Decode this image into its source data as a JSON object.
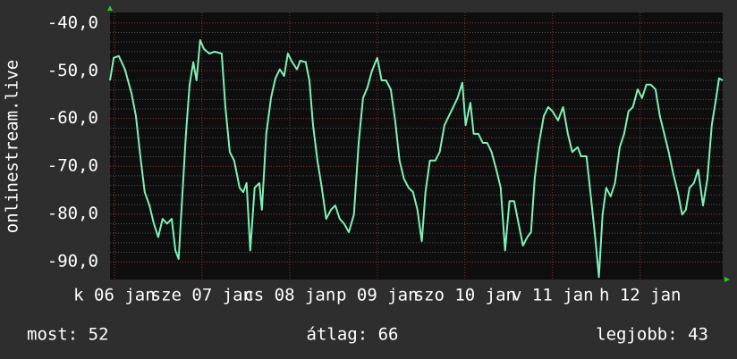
{
  "chart_data": {
    "type": "line",
    "y_label": "onlinestream.live",
    "ylim": [
      -93.7,
      -37.8
    ],
    "yticks": [
      {
        "value": -40,
        "label": "-40,0"
      },
      {
        "value": -50,
        "label": "-50,0"
      },
      {
        "value": -60,
        "label": "-60,0"
      },
      {
        "value": -70,
        "label": "-70,0"
      },
      {
        "value": -80,
        "label": "-80,0"
      },
      {
        "value": -90,
        "label": "-90,0"
      }
    ],
    "xlim": [
      -1.2,
      166.6
    ],
    "xticks": [
      {
        "value": 0,
        "label": "k 06 jan"
      },
      {
        "value": 24,
        "label": "sze 07 jan"
      },
      {
        "value": 48,
        "label": "cs 08 jan"
      },
      {
        "value": 72,
        "label": "p 09 jan"
      },
      {
        "value": 96,
        "label": "szo 10 jan"
      },
      {
        "value": 120,
        "label": "v 11 jan"
      },
      {
        "value": 144,
        "label": "h 12 jan"
      }
    ],
    "grid": true,
    "x": [
      -1.2,
      -0.2,
      1.2,
      2.9,
      4.7,
      5.9,
      7.1,
      8.3,
      9.6,
      10.8,
      12.0,
      13.2,
      14.4,
      15.7,
      16.7,
      17.6,
      18.6,
      19.6,
      20.6,
      21.6,
      22.5,
      23.5,
      24.5,
      26.0,
      27.4,
      29.4,
      30.4,
      31.6,
      32.8,
      34.3,
      35.3,
      36.2,
      37.2,
      38.4,
      39.7,
      40.4,
      41.6,
      42.9,
      44.1,
      45.3,
      46.5,
      47.5,
      48.7,
      50.0,
      50.9,
      52.4,
      53.4,
      54.4,
      55.6,
      56.8,
      58.0,
      59.3,
      60.5,
      61.7,
      62.9,
      64.2,
      65.6,
      66.9,
      68.1,
      69.3,
      70.5,
      72.0,
      73.2,
      74.4,
      75.7,
      76.9,
      78.1,
      79.3,
      80.6,
      81.8,
      83.0,
      84.2,
      85.2,
      86.4,
      87.9,
      89.1,
      90.4,
      91.6,
      92.8,
      94.0,
      95.3,
      96.2,
      97.5,
      98.4,
      99.7,
      100.9,
      102.1,
      103.3,
      104.6,
      105.8,
      107.0,
      108.2,
      109.5,
      110.7,
      111.9,
      113.1,
      114.1,
      115.1,
      116.3,
      117.6,
      118.8,
      120.0,
      121.5,
      122.9,
      124.2,
      125.4,
      126.9,
      127.8,
      129.3,
      130.5,
      131.8,
      132.7,
      133.7,
      134.7,
      135.9,
      137.1,
      138.4,
      139.6,
      140.8,
      142.0,
      143.3,
      144.5,
      145.7,
      146.9,
      148.2,
      149.4,
      150.6,
      151.8,
      153.1,
      154.3,
      155.5,
      156.5,
      157.5,
      158.7,
      159.9,
      161.2,
      162.4,
      163.6,
      164.8,
      165.6,
      166.6
    ],
    "series": [
      {
        "name": "onlinestream.live",
        "color": "#7ef0b8",
        "values": [
          -52.0,
          -47.3,
          -46.9,
          -49.7,
          -54.8,
          -59.5,
          -67.9,
          -75.4,
          -78.2,
          -82.0,
          -84.8,
          -81.0,
          -82.0,
          -81.0,
          -87.6,
          -89.4,
          -76.3,
          -63.2,
          -52.9,
          -48.2,
          -52.0,
          -43.6,
          -45.4,
          -46.4,
          -46.0,
          -46.4,
          -57.6,
          -67.0,
          -68.8,
          -74.5,
          -75.4,
          -73.5,
          -87.6,
          -74.5,
          -73.5,
          -79.1,
          -63.2,
          -55.7,
          -51.6,
          -49.7,
          -51.1,
          -46.4,
          -48.2,
          -49.7,
          -47.9,
          -48.2,
          -52.0,
          -61.4,
          -68.8,
          -74.5,
          -81.0,
          -79.1,
          -78.2,
          -81.0,
          -82.0,
          -83.8,
          -80.1,
          -65.1,
          -55.7,
          -53.5,
          -50.1,
          -47.3,
          -52.0,
          -52.0,
          -53.9,
          -60.4,
          -68.8,
          -72.6,
          -74.5,
          -75.4,
          -79.1,
          -85.7,
          -75.4,
          -68.8,
          -68.8,
          -67.0,
          -61.4,
          -59.5,
          -57.6,
          -55.7,
          -52.5,
          -61.4,
          -56.7,
          -63.2,
          -63.2,
          -65.1,
          -65.1,
          -67.0,
          -70.7,
          -74.5,
          -87.6,
          -77.3,
          -77.3,
          -82.0,
          -86.6,
          -84.8,
          -83.8,
          -72.6,
          -65.1,
          -59.5,
          -57.6,
          -58.5,
          -60.4,
          -57.6,
          -63.2,
          -67.0,
          -66.0,
          -67.9,
          -67.9,
          -76.3,
          -85.7,
          -93.2,
          -80.1,
          -74.5,
          -76.3,
          -73.5,
          -66.0,
          -63.2,
          -58.5,
          -57.6,
          -53.9,
          -55.7,
          -52.9,
          -52.9,
          -53.9,
          -59.5,
          -63.2,
          -67.0,
          -71.7,
          -75.4,
          -80.1,
          -79.1,
          -74.5,
          -73.5,
          -70.7,
          -78.2,
          -72.6,
          -61.4,
          -55.7,
          -51.6,
          -52.0
        ]
      }
    ],
    "footer": [
      "most: 52",
      "átlag: 66",
      "legjobb: 43"
    ]
  }
}
